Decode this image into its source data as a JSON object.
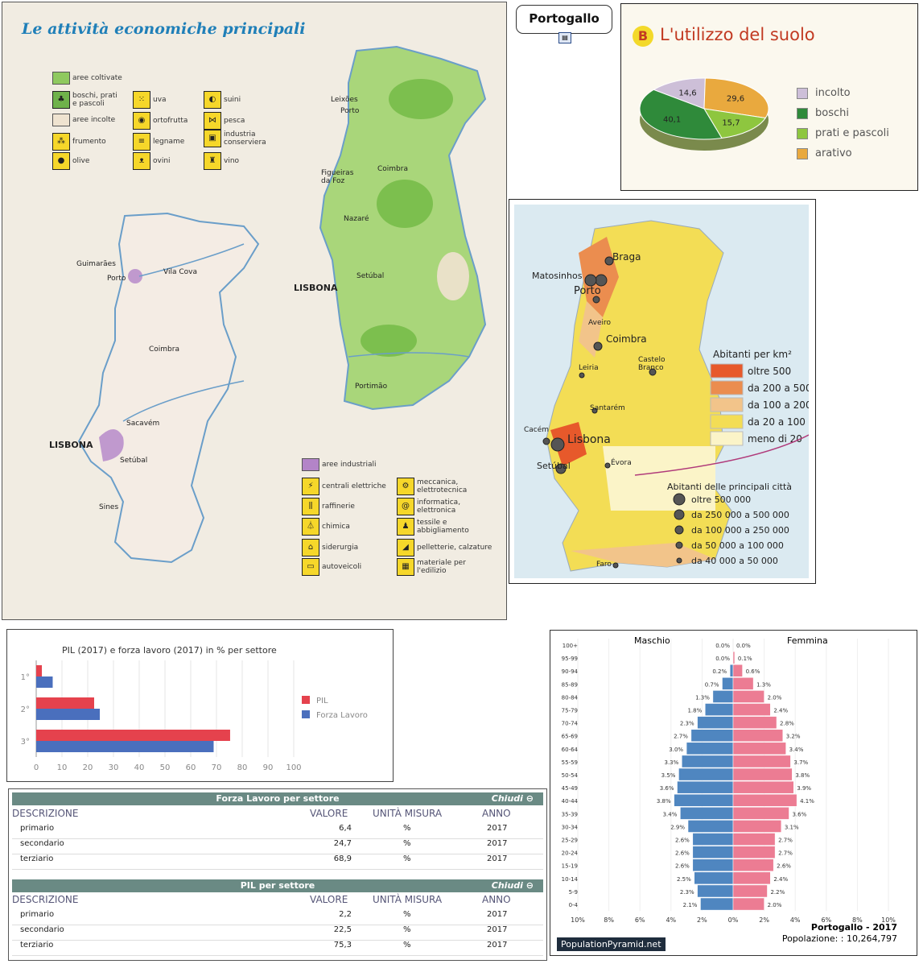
{
  "atlas": {
    "title": "Le attività economiche principali",
    "agri_legend": [
      {
        "label": "aree coltivate",
        "icon": "swatch-green"
      },
      {
        "label": "boschi, prati e pascoli",
        "icon": "tree-icon"
      },
      {
        "label": "aree incolte",
        "icon": "swatch-beige"
      },
      {
        "label": "frumento",
        "icon": "wheat-icon"
      },
      {
        "label": "olive",
        "icon": "olive-icon"
      },
      {
        "label": "uva",
        "icon": "grape-icon"
      },
      {
        "label": "ortofrutta",
        "icon": "fruit-icon"
      },
      {
        "label": "legname",
        "icon": "log-icon"
      },
      {
        "label": "ovini",
        "icon": "sheep-icon"
      },
      {
        "label": "suini",
        "icon": "pig-icon"
      },
      {
        "label": "pesca",
        "icon": "fish-icon"
      },
      {
        "label": "industria conserviera",
        "icon": "can-icon"
      },
      {
        "label": "vino",
        "icon": "wine-icon"
      }
    ],
    "ind_legend": [
      {
        "label": "aree industriali",
        "icon": "swatch-purple"
      },
      {
        "label": "centrali elettriche",
        "icon": "pylon-icon"
      },
      {
        "label": "raffinerie",
        "icon": "refinery-icon"
      },
      {
        "label": "chimica",
        "icon": "flask-icon"
      },
      {
        "label": "siderurgia",
        "icon": "steel-icon"
      },
      {
        "label": "autoveicoli",
        "icon": "car-icon"
      },
      {
        "label": "meccanica, elettrotecnica",
        "icon": "gear-icon"
      },
      {
        "label": "informatica, elettronica",
        "icon": "computer-icon"
      },
      {
        "label": "tessile e abbigliamento",
        "icon": "textile-icon"
      },
      {
        "label": "pelletterie, calzature",
        "icon": "shoe-icon"
      },
      {
        "label": "materiale per l'edilizio",
        "icon": "brick-icon"
      }
    ],
    "agri_cities": [
      "Leixões",
      "Porto",
      "Figueiras da Foz",
      "Coimbra",
      "Nazaré",
      "LISBONA",
      "Setúbal",
      "Portimão"
    ],
    "ind_cities": [
      "Guimarães",
      "Vila Cova",
      "Porto",
      "Coimbra",
      "Sacavém",
      "LISBONA",
      "Setúbal",
      "Sines"
    ]
  },
  "title_button": {
    "label": "Portogallo"
  },
  "land_use": {
    "letter": "B",
    "title": "L'utilizzo del suolo",
    "slices": [
      {
        "label": "incolto",
        "value": "14,6",
        "color": "#cdbfd8"
      },
      {
        "label": "boschi",
        "value": "40,1",
        "color": "#2f8a3a"
      },
      {
        "label": "prati e pascoli",
        "value": "15,7",
        "color": "#8ec63f"
      },
      {
        "label": "arativo",
        "value": "29,6",
        "color": "#e9a93e"
      }
    ]
  },
  "density": {
    "legend_title": "Abitanti per km²",
    "classes": [
      {
        "label": "oltre 500",
        "color": "#e7592b"
      },
      {
        "label": "da 200 a 500",
        "color": "#eb8d4f"
      },
      {
        "label": "da 100 a 200",
        "color": "#f2c48a"
      },
      {
        "label": "da 20 a 100",
        "color": "#f3dd55"
      },
      {
        "label": "meno di 20",
        "color": "#fbf4c8"
      }
    ],
    "cities_title": "Abitanti delle principali città",
    "city_classes": [
      "oltre 500 000",
      "da 250 000 a 500 000",
      "da 100 000 a 250 000",
      "da 50 000 a 100 000",
      "da 40 000 a 50 000"
    ],
    "cities": [
      "Braga",
      "Matosinhos",
      "Porto",
      "Aveiro",
      "Coimbra",
      "Castelo Branco",
      "Leiria",
      "Santarém",
      "Cacém",
      "Lisbona",
      "Setúbal",
      "Évora",
      "Faro"
    ]
  },
  "gdp_chart": {
    "title": "PIL (2017) e forza lavoro (2017) in % per settore",
    "legend": [
      "PIL",
      "Forza Lavoro"
    ],
    "x_ticks": [
      "0",
      "10",
      "20",
      "30",
      "40",
      "50",
      "60",
      "70",
      "80",
      "90",
      "100"
    ]
  },
  "chart_data": [
    {
      "type": "bar",
      "orientation": "horizontal",
      "title": "PIL (2017) e forza lavoro (2017) in % per settore",
      "categories": [
        "1°",
        "2°",
        "3°"
      ],
      "series": [
        {
          "name": "PIL",
          "color": "#e5424d",
          "values": [
            2.2,
            22.5,
            75.3
          ]
        },
        {
          "name": "Forza Lavoro",
          "color": "#4a6fbd",
          "values": [
            6.4,
            24.7,
            68.9
          ]
        }
      ],
      "xlim": [
        0,
        100
      ]
    },
    {
      "type": "bar",
      "orientation": "horizontal",
      "title": "Portogallo - 2017",
      "subtitle": "Popolazione: : 10,264,797",
      "categories": [
        "100+",
        "95-99",
        "90-94",
        "85-89",
        "80-84",
        "75-79",
        "70-74",
        "65-69",
        "60-64",
        "55-59",
        "50-54",
        "45-49",
        "40-44",
        "35-39",
        "30-34",
        "25-29",
        "20-24",
        "15-19",
        "10-14",
        "5-9",
        "0-4"
      ],
      "series": [
        {
          "name": "Maschio",
          "color": "#4f86c0",
          "values": [
            0.0,
            0.0,
            0.2,
            0.7,
            1.3,
            1.8,
            2.3,
            2.7,
            3.0,
            3.3,
            3.5,
            3.6,
            3.8,
            3.4,
            2.9,
            2.6,
            2.6,
            2.6,
            2.5,
            2.3,
            2.1
          ]
        },
        {
          "name": "Femmina",
          "color": "#ec7c93",
          "values": [
            0.0,
            0.1,
            0.6,
            1.3,
            2.0,
            2.4,
            2.8,
            3.2,
            3.4,
            3.7,
            3.8,
            3.9,
            4.1,
            3.6,
            3.1,
            2.7,
            2.7,
            2.6,
            2.4,
            2.2,
            2.0
          ]
        }
      ],
      "x_ticks": [
        "10%",
        "8%",
        "6%",
        "4%",
        "2%",
        "0%",
        "2%",
        "4%",
        "6%",
        "8%",
        "10%"
      ],
      "xlim": [
        -10,
        10
      ]
    }
  ],
  "labour_table": {
    "title": "Forza Lavoro per settore",
    "close": "Chiudi",
    "headers": [
      "DESCRIZIONE",
      "VALORE",
      "UNITÀ MISURA",
      "ANNO"
    ],
    "rows": [
      [
        "primario",
        "6,4",
        "%",
        "2017"
      ],
      [
        "secondario",
        "24,7",
        "%",
        "2017"
      ],
      [
        "terziario",
        "68,9",
        "%",
        "2017"
      ]
    ]
  },
  "gdp_table": {
    "title": "PIL per settore",
    "close": "Chiudi",
    "headers": [
      "DESCRIZIONE",
      "VALORE",
      "UNITÀ MISURA",
      "ANNO"
    ],
    "rows": [
      [
        "primario",
        "2,2",
        "%",
        "2017"
      ],
      [
        "secondario",
        "22,5",
        "%",
        "2017"
      ],
      [
        "terziario",
        "75,3",
        "%",
        "2017"
      ]
    ]
  },
  "pyramid": {
    "male_label": "Maschio",
    "female_label": "Femmina",
    "title": "Portogallo - 2017",
    "population": "Popolazione: : 10,264,797",
    "brand": "PopulationPyramid.net"
  }
}
